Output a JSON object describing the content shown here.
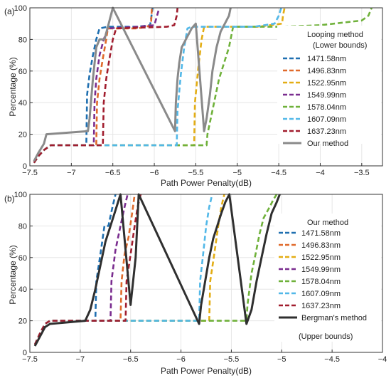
{
  "chart_data": [
    {
      "type": "line",
      "panel_label": "(a)",
      "xlabel": "Path Power Penalty(dB)",
      "ylabel": "Percentage (%)",
      "xlim": [
        -7.5,
        -3.25
      ],
      "ylim": [
        0,
        100
      ],
      "xticks": [
        -7.5,
        -7,
        -6.5,
        -6,
        -5.5,
        -5,
        -4.5,
        -4,
        -3.5
      ],
      "xtick_labels": [
        "−7.5",
        "−7",
        "−6.5",
        "−6",
        "−5.5",
        "−5",
        "−4.5",
        "−4",
        "−3.5"
      ],
      "yticks": [
        0,
        20,
        40,
        60,
        80,
        100
      ],
      "ytick_labels": [
        "0",
        "20",
        "40",
        "60",
        "80",
        "100"
      ],
      "grid": true,
      "legend_title": [
        "Looping method",
        "(Lower bounds)"
      ],
      "legend_placement": "right",
      "series": [
        {
          "name": "1471.58nm",
          "color": "#1f6fb0",
          "dashed": true,
          "x": [
            -7.45,
            -7.4,
            -7.33,
            -7.25,
            -6.82,
            -6.81,
            -6.78,
            -6.74,
            -6.7,
            -6.66,
            -6.56,
            -6.2,
            -6.05,
            -6.02
          ],
          "y": [
            2,
            6,
            10,
            13,
            13,
            45,
            58,
            70,
            80,
            87,
            88,
            88,
            89,
            100
          ]
        },
        {
          "name": "1496.83nm",
          "color": "#e06a2b",
          "dashed": true,
          "x": [
            -7.45,
            -7.4,
            -7.33,
            -7.25,
            -6.7,
            -6.69,
            -6.66,
            -6.62,
            -6.58,
            -6.56,
            -6.2,
            -6.1,
            -6.04,
            -6.03
          ],
          "y": [
            2,
            6,
            10,
            13,
            13,
            40,
            55,
            68,
            80,
            87,
            87,
            88,
            89,
            100
          ]
        },
        {
          "name": "1522.95nm",
          "color": "#e3ad14",
          "dashed": true,
          "x": [
            -7.45,
            -7.4,
            -7.33,
            -7.25,
            -5.52,
            -5.51,
            -5.47,
            -5.43,
            -5.4,
            -4.75,
            -4.46,
            -4.45,
            -4.43
          ],
          "y": [
            2,
            6,
            10,
            13,
            13,
            40,
            62,
            80,
            88,
            88,
            90,
            95,
            100
          ]
        },
        {
          "name": "1549.99nm",
          "color": "#7a2d8f",
          "dashed": true,
          "x": [
            -7.45,
            -7.4,
            -7.33,
            -7.25,
            -6.73,
            -6.72,
            -6.7,
            -6.66,
            -6.61,
            -6.56,
            -6.2,
            -6.0,
            -5.94
          ],
          "y": [
            2,
            6,
            10,
            13,
            13,
            40,
            55,
            70,
            80,
            87,
            88,
            89,
            100
          ]
        },
        {
          "name": "1578.04nm",
          "color": "#6fb13a",
          "dashed": true,
          "x": [
            -7.45,
            -7.4,
            -7.33,
            -7.25,
            -5.37,
            -5.36,
            -5.3,
            -5.22,
            -5.1,
            -5.05,
            -4.5,
            -4.0,
            -3.5,
            -3.42,
            -3.38
          ],
          "y": [
            2,
            6,
            10,
            13,
            13,
            20,
            35,
            55,
            75,
            88,
            88,
            89,
            92,
            95,
            100
          ]
        },
        {
          "name": "1607.09nm",
          "color": "#52b8e8",
          "dashed": true,
          "x": [
            -7.45,
            -7.4,
            -7.33,
            -7.25,
            -5.73,
            -5.72,
            -5.68,
            -5.64,
            -5.6,
            -5.55,
            -4.8,
            -4.55,
            -4.5,
            -4.47
          ],
          "y": [
            2,
            6,
            10,
            13,
            13,
            35,
            58,
            75,
            87,
            88,
            88,
            90,
            95,
            100
          ]
        },
        {
          "name": "1637.23nm",
          "color": "#a11d2e",
          "dashed": true,
          "x": [
            -7.45,
            -7.4,
            -7.33,
            -7.25,
            -6.62,
            -6.61,
            -6.58,
            -6.55,
            -6.5,
            -6.46,
            -5.85,
            -5.76,
            -5.73,
            -5.72
          ],
          "y": [
            2,
            6,
            10,
            13,
            13,
            40,
            55,
            65,
            80,
            87,
            88,
            89,
            95,
            100
          ]
        },
        {
          "name": "Our method",
          "color": "#8a8a8a",
          "dashed": false,
          "x": [
            -7.45,
            -7.4,
            -7.33,
            -7.3,
            -6.8,
            -6.78,
            -6.74,
            -6.7,
            -6.66,
            -6.6,
            -6.55,
            -6.5,
            -5.75,
            -5.74,
            -5.72,
            -5.7,
            -5.67,
            -5.62,
            -5.55,
            -5.5,
            -5.4,
            -5.37,
            -5.33,
            -5.3,
            -5.25,
            -5.2,
            -5.15,
            -5.1,
            -5.08
          ],
          "y": [
            3,
            8,
            14,
            20,
            22,
            30,
            55,
            75,
            80,
            80,
            90,
            100,
            22,
            40,
            55,
            65,
            75,
            80,
            87,
            90,
            22,
            30,
            45,
            60,
            75,
            85,
            90,
            95,
            100
          ]
        }
      ]
    },
    {
      "type": "line",
      "panel_label": "(b)",
      "xlabel": "Path Power Penalty(dB)",
      "ylabel": "Percentage (%)",
      "xlim": [
        -7.5,
        -4
      ],
      "ylim": [
        0,
        100
      ],
      "xticks": [
        -7.5,
        -7,
        -6.5,
        -6,
        -5.5,
        -5,
        -4.5,
        -4
      ],
      "xtick_labels": [
        "−7.5",
        "−7",
        "−6.5",
        "−6",
        "−5.5",
        "−5",
        "−4.5",
        "−4"
      ],
      "yticks": [
        0,
        20,
        40,
        60,
        80,
        100
      ],
      "ytick_labels": [
        "0",
        "20",
        "40",
        "60",
        "80",
        "100"
      ],
      "grid": true,
      "legend_title": [
        "Our method"
      ],
      "legend_placement": "right",
      "series": [
        {
          "name": "1471.58nm",
          "color": "#1f6fb0",
          "dashed": true,
          "x": [
            -7.45,
            -7.4,
            -7.35,
            -7.3,
            -6.85,
            -6.84,
            -6.8,
            -6.76,
            -6.72,
            -6.68,
            -6.65
          ],
          "y": [
            5,
            12,
            18,
            20,
            20,
            45,
            62,
            80,
            80,
            92,
            100
          ]
        },
        {
          "name": "1496.83nm",
          "color": "#e06a2b",
          "dashed": true,
          "x": [
            -7.45,
            -7.4,
            -7.35,
            -7.3,
            -6.6,
            -6.59,
            -6.56,
            -6.52,
            -6.48,
            -6.46
          ],
          "y": [
            5,
            12,
            18,
            20,
            20,
            45,
            62,
            73,
            90,
            100
          ]
        },
        {
          "name": "1522.95nm",
          "color": "#e3ad14",
          "dashed": true,
          "x": [
            -7.45,
            -7.4,
            -7.35,
            -7.3,
            -5.72,
            -5.71,
            -5.67,
            -5.63,
            -5.6,
            -5.57
          ],
          "y": [
            5,
            12,
            18,
            20,
            20,
            45,
            62,
            80,
            92,
            100
          ]
        },
        {
          "name": "1549.99nm",
          "color": "#7a2d8f",
          "dashed": true,
          "x": [
            -7.45,
            -7.4,
            -7.35,
            -7.3,
            -6.7,
            -6.69,
            -6.65,
            -6.6,
            -6.56,
            -6.53
          ],
          "y": [
            5,
            12,
            18,
            20,
            20,
            45,
            65,
            80,
            92,
            100
          ]
        },
        {
          "name": "1578.04nm",
          "color": "#6fb13a",
          "dashed": true,
          "x": [
            -7.45,
            -7.4,
            -7.35,
            -7.3,
            -5.35,
            -5.34,
            -5.3,
            -5.26,
            -5.22,
            -5.18,
            -5.12,
            -5.08,
            -5.05
          ],
          "y": [
            5,
            12,
            18,
            20,
            20,
            30,
            50,
            62,
            75,
            85,
            92,
            97,
            100
          ]
        },
        {
          "name": "1607.09nm",
          "color": "#52b8e8",
          "dashed": true,
          "x": [
            -7.45,
            -7.4,
            -7.35,
            -7.3,
            -5.82,
            -5.81,
            -5.78,
            -5.75,
            -5.72,
            -5.69
          ],
          "y": [
            5,
            12,
            18,
            20,
            20,
            45,
            62,
            80,
            92,
            100
          ]
        },
        {
          "name": "1637.23nm",
          "color": "#a11d2e",
          "dashed": true,
          "x": [
            -7.45,
            -7.4,
            -7.35,
            -7.3,
            -6.55,
            -6.54,
            -6.5,
            -6.46,
            -6.43,
            -6.4
          ],
          "y": [
            5,
            12,
            18,
            20,
            20,
            45,
            62,
            80,
            92,
            100
          ]
        },
        {
          "name": "Bergman's method",
          "color": "#2f2f2f",
          "dashed": false,
          "x": [
            -7.45,
            -7.4,
            -7.35,
            -7.3,
            -6.95,
            -6.9,
            -6.85,
            -6.8,
            -6.75,
            -6.7,
            -6.65,
            -6.6,
            -6.5,
            -6.45,
            -6.42,
            -5.82,
            -5.8,
            -5.76,
            -5.72,
            -5.68,
            -5.64,
            -5.6,
            -5.56,
            -5.52,
            -5.35,
            -5.3,
            -5.25,
            -5.2,
            -5.15,
            -5.1,
            -5.05,
            -5.02
          ],
          "y": [
            4,
            10,
            16,
            18,
            20,
            27,
            40,
            55,
            70,
            80,
            90,
            100,
            30,
            60,
            100,
            18,
            30,
            45,
            60,
            72,
            80,
            88,
            95,
            100,
            18,
            27,
            45,
            60,
            75,
            88,
            95,
            100
          ]
        }
      ]
    }
  ],
  "legend_b_note": "(Upper bounds)"
}
